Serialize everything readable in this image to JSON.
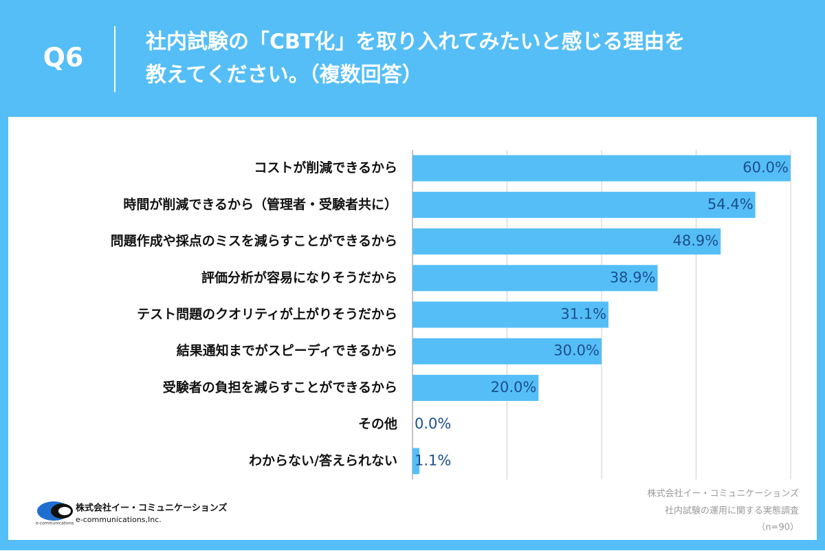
{
  "header": {
    "label": "Q6",
    "title_lines": [
      "社内試験の「CBT化」を取り入れてみたいと感じる理由を",
      "教えてください。（複数回答）"
    ]
  },
  "chart_data": {
    "type": "hbar",
    "categories": [
      "コストが削減できるから",
      "時間が削減できるから（管理者・受験者共に）",
      "問題作成や採点のミスを減らすことができるから",
      "評価分析が容易になりそうだから",
      "テスト問題のクオリティが上がりそうだから",
      "結果通知までがスピーディできるから",
      "受験者の負担を減らすことができるから",
      "その他",
      "わからない/答えられない"
    ],
    "values": [
      60.0,
      54.4,
      48.9,
      38.9,
      31.1,
      30.0,
      20.0,
      0.0,
      1.1
    ],
    "value_labels": [
      "60.0%",
      "54.4%",
      "48.9%",
      "38.9%",
      "31.1%",
      "30.0%",
      "20.0%",
      "0.0%",
      "1.1%"
    ],
    "color": "#55bef7",
    "label_color": "#1b4f8c",
    "xlim": [
      0,
      60
    ],
    "xticks": [
      0,
      15,
      30,
      45,
      60
    ],
    "grid": true
  },
  "footer": {
    "company": "株式会社イー・コミュニケーションズ",
    "company_en": "e-communications,Inc.",
    "logo_text": "e-communications",
    "source_lines": [
      "株式会社イー・コミュニケーションズ",
      "社内試験の運用に関する実態調査",
      "（n=90）"
    ]
  }
}
